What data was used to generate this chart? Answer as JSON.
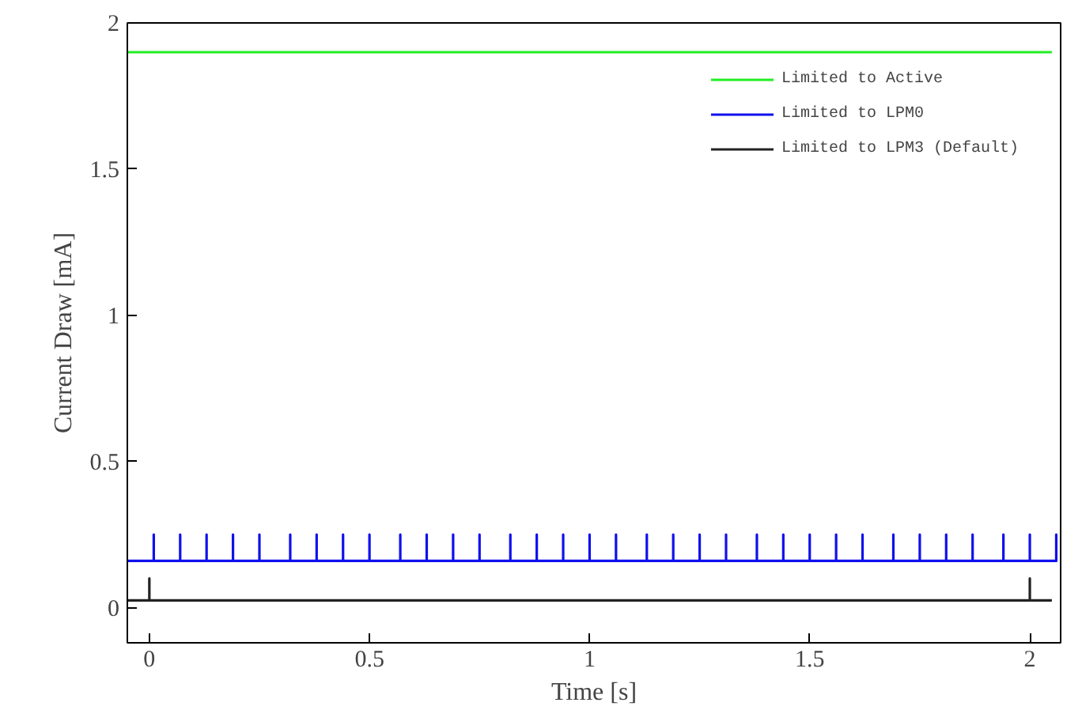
{
  "chart_data": {
    "type": "line",
    "xlabel": "Time [s]",
    "ylabel": "Current Draw [mA]",
    "xlim": [
      -0.05,
      2.07
    ],
    "ylim": [
      -0.12,
      2
    ],
    "xticks": [
      0,
      0.5,
      1,
      1.5,
      2
    ],
    "yticks": [
      0,
      0.5,
      1,
      1.5,
      2
    ],
    "grid": false,
    "legend": "top right",
    "line_style": "solid",
    "series": [
      {
        "name": "Limited to Active",
        "color": "#22ee22",
        "x": [
          -0.05,
          2.05
        ],
        "values": [
          1.9,
          1.9
        ]
      },
      {
        "name": "Limited to LPM0",
        "color": "#1010ee",
        "x": [
          -0.05,
          0.01,
          0.01,
          0.01,
          0.07,
          0.07,
          0.07,
          0.13,
          0.13,
          0.13,
          0.19,
          0.19,
          0.19,
          0.25,
          0.25,
          0.25,
          0.32,
          0.32,
          0.32,
          0.38,
          0.38,
          0.38,
          0.44,
          0.44,
          0.44,
          0.5,
          0.5,
          0.5,
          0.57,
          0.57,
          0.57,
          0.63,
          0.63,
          0.63,
          0.69,
          0.69,
          0.69,
          0.75,
          0.75,
          0.75,
          0.82,
          0.82,
          0.82,
          0.88,
          0.88,
          0.88,
          0.94,
          0.94,
          0.94,
          1,
          1,
          1,
          1.06,
          1.06,
          1.06,
          1.13,
          1.13,
          1.13,
          1.19,
          1.19,
          1.19,
          1.25,
          1.25,
          1.25,
          1.31,
          1.31,
          1.31,
          1.38,
          1.38,
          1.38,
          1.44,
          1.44,
          1.44,
          1.5,
          1.5,
          1.5,
          1.56,
          1.56,
          1.56,
          1.62,
          1.62,
          1.62,
          1.69,
          1.69,
          1.69,
          1.75,
          1.75,
          1.75,
          1.81,
          1.81,
          1.81,
          1.87,
          1.87,
          1.87,
          1.94,
          1.94,
          1.94,
          2,
          2,
          2,
          2.06,
          2.06,
          2.06
        ],
        "values": [
          0.16,
          0.16,
          0.25,
          0.16,
          0.16,
          0.25,
          0.16,
          0.16,
          0.25,
          0.16,
          0.16,
          0.25,
          0.16,
          0.16,
          0.25,
          0.16,
          0.16,
          0.25,
          0.16,
          0.16,
          0.25,
          0.16,
          0.16,
          0.25,
          0.16,
          0.16,
          0.25,
          0.16,
          0.16,
          0.25,
          0.16,
          0.16,
          0.25,
          0.16,
          0.16,
          0.25,
          0.16,
          0.16,
          0.25,
          0.16,
          0.16,
          0.25,
          0.16,
          0.16,
          0.25,
          0.16,
          0.16,
          0.25,
          0.16,
          0.16,
          0.25,
          0.16,
          0.16,
          0.25,
          0.16,
          0.16,
          0.25,
          0.16,
          0.16,
          0.25,
          0.16,
          0.16,
          0.25,
          0.16,
          0.16,
          0.25,
          0.16,
          0.16,
          0.25,
          0.16,
          0.16,
          0.25,
          0.16,
          0.16,
          0.25,
          0.16,
          0.16,
          0.25,
          0.16,
          0.16,
          0.25,
          0.16,
          0.16,
          0.25,
          0.16,
          0.16,
          0.25,
          0.16,
          0.16,
          0.25,
          0.16,
          0.16,
          0.25,
          0.16,
          0.16,
          0.25,
          0.16,
          0.16,
          0.25,
          0.16,
          0.16,
          0.25,
          0.16
        ]
      },
      {
        "name": "Limited to LPM3 (Default)",
        "color": "#222222",
        "x": [
          -0.05,
          0,
          0,
          0,
          2,
          2,
          2,
          2.05
        ],
        "values": [
          0.025,
          0.025,
          0.1,
          0.025,
          0.025,
          0.1,
          0.025,
          0.025
        ]
      }
    ]
  }
}
